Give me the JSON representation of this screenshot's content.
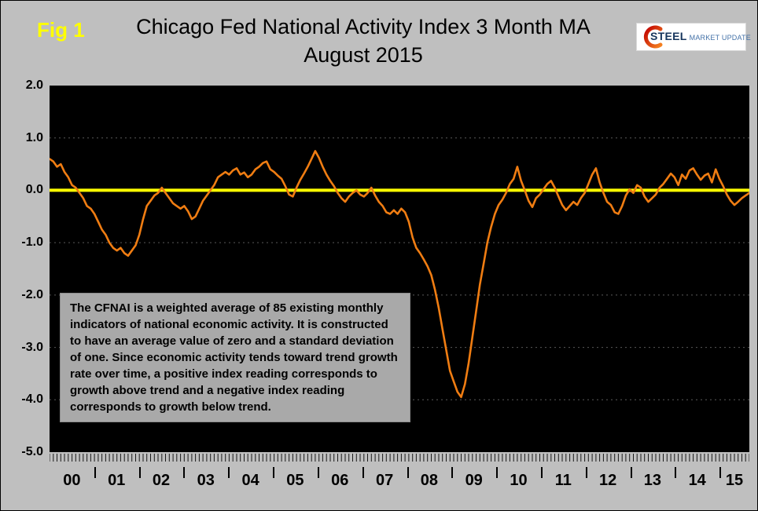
{
  "header": {
    "fig_label": "Fig 1",
    "logo_primary": "STEEL",
    "logo_secondary": "MARKET UPDATE"
  },
  "chart_data": {
    "type": "line",
    "title": "Chicago Fed National Activity Index 3 Month MA",
    "subtitle": "August 2015",
    "xlabel": "",
    "ylabel": "",
    "ylim": [
      -5.0,
      2.0
    ],
    "yticks": [
      2.0,
      1.0,
      0.0,
      -1.0,
      -2.0,
      -3.0,
      -4.0,
      -5.0
    ],
    "grid": "dotted horizontal gridlines on black plot area",
    "plot_background": "#000000",
    "page_background": "#BFBFBF",
    "zero_line_color": "#FFFF00",
    "x_range": "Jan 2000 - Aug 2015, monthly",
    "x_year_labels": [
      "00",
      "01",
      "02",
      "03",
      "04",
      "05",
      "06",
      "07",
      "08",
      "09",
      "10",
      "11",
      "12",
      "13",
      "14",
      "15"
    ],
    "months_per_year": [
      12,
      12,
      12,
      12,
      12,
      12,
      12,
      12,
      12,
      12,
      12,
      12,
      12,
      12,
      12,
      8
    ],
    "annotation": "The CFNAI is a weighted average of 85 existing monthly indicators of national economic activity. It is constructed to have an average value of zero and a standard deviation of one. Since economic activity tends toward trend growth rate over time, a positive index reading corresponds to growth above trend and a negative index reading corresponds to growth below trend.",
    "series": [
      {
        "name": "CFNAI 3 Month Moving Average",
        "color": "#F07D12",
        "values": [
          0.6,
          0.55,
          0.45,
          0.5,
          0.35,
          0.25,
          0.1,
          0.05,
          -0.05,
          -0.15,
          -0.3,
          -0.35,
          -0.45,
          -0.6,
          -0.75,
          -0.85,
          -1.0,
          -1.1,
          -1.15,
          -1.1,
          -1.2,
          -1.25,
          -1.15,
          -1.05,
          -0.85,
          -0.55,
          -0.3,
          -0.2,
          -0.1,
          -0.05,
          0.05,
          -0.05,
          -0.15,
          -0.25,
          -0.3,
          -0.35,
          -0.3,
          -0.4,
          -0.55,
          -0.5,
          -0.35,
          -0.2,
          -0.1,
          0.0,
          0.1,
          0.25,
          0.3,
          0.35,
          0.3,
          0.38,
          0.42,
          0.3,
          0.34,
          0.25,
          0.3,
          0.4,
          0.45,
          0.52,
          0.55,
          0.4,
          0.35,
          0.28,
          0.22,
          0.08,
          -0.08,
          -0.12,
          0.05,
          0.2,
          0.32,
          0.45,
          0.6,
          0.75,
          0.62,
          0.45,
          0.3,
          0.18,
          0.08,
          -0.05,
          -0.15,
          -0.22,
          -0.12,
          -0.05,
          0.0,
          -0.08,
          -0.12,
          -0.05,
          0.05,
          -0.1,
          -0.22,
          -0.3,
          -0.42,
          -0.45,
          -0.38,
          -0.45,
          -0.35,
          -0.42,
          -0.6,
          -0.9,
          -1.1,
          -1.2,
          -1.32,
          -1.45,
          -1.62,
          -1.9,
          -2.25,
          -2.65,
          -3.05,
          -3.45,
          -3.65,
          -3.85,
          -3.95,
          -3.7,
          -3.3,
          -2.8,
          -2.3,
          -1.8,
          -1.4,
          -1.0,
          -0.7,
          -0.45,
          -0.28,
          -0.18,
          -0.05,
          0.12,
          0.22,
          0.45,
          0.18,
          0.0,
          -0.2,
          -0.32,
          -0.15,
          -0.08,
          0.02,
          0.12,
          0.18,
          0.05,
          -0.12,
          -0.28,
          -0.38,
          -0.3,
          -0.22,
          -0.28,
          -0.15,
          -0.05,
          0.12,
          0.3,
          0.42,
          0.15,
          -0.05,
          -0.22,
          -0.28,
          -0.42,
          -0.45,
          -0.3,
          -0.1,
          0.02,
          -0.05,
          0.1,
          0.05,
          -0.12,
          -0.22,
          -0.15,
          -0.08,
          0.05,
          0.12,
          0.22,
          0.32,
          0.25,
          0.1,
          0.3,
          0.22,
          0.38,
          0.42,
          0.3,
          0.2,
          0.28,
          0.32,
          0.15,
          0.4,
          0.22,
          0.08,
          -0.08,
          -0.2,
          -0.28,
          -0.22,
          -0.15,
          -0.1,
          -0.05
        ]
      }
    ]
  }
}
